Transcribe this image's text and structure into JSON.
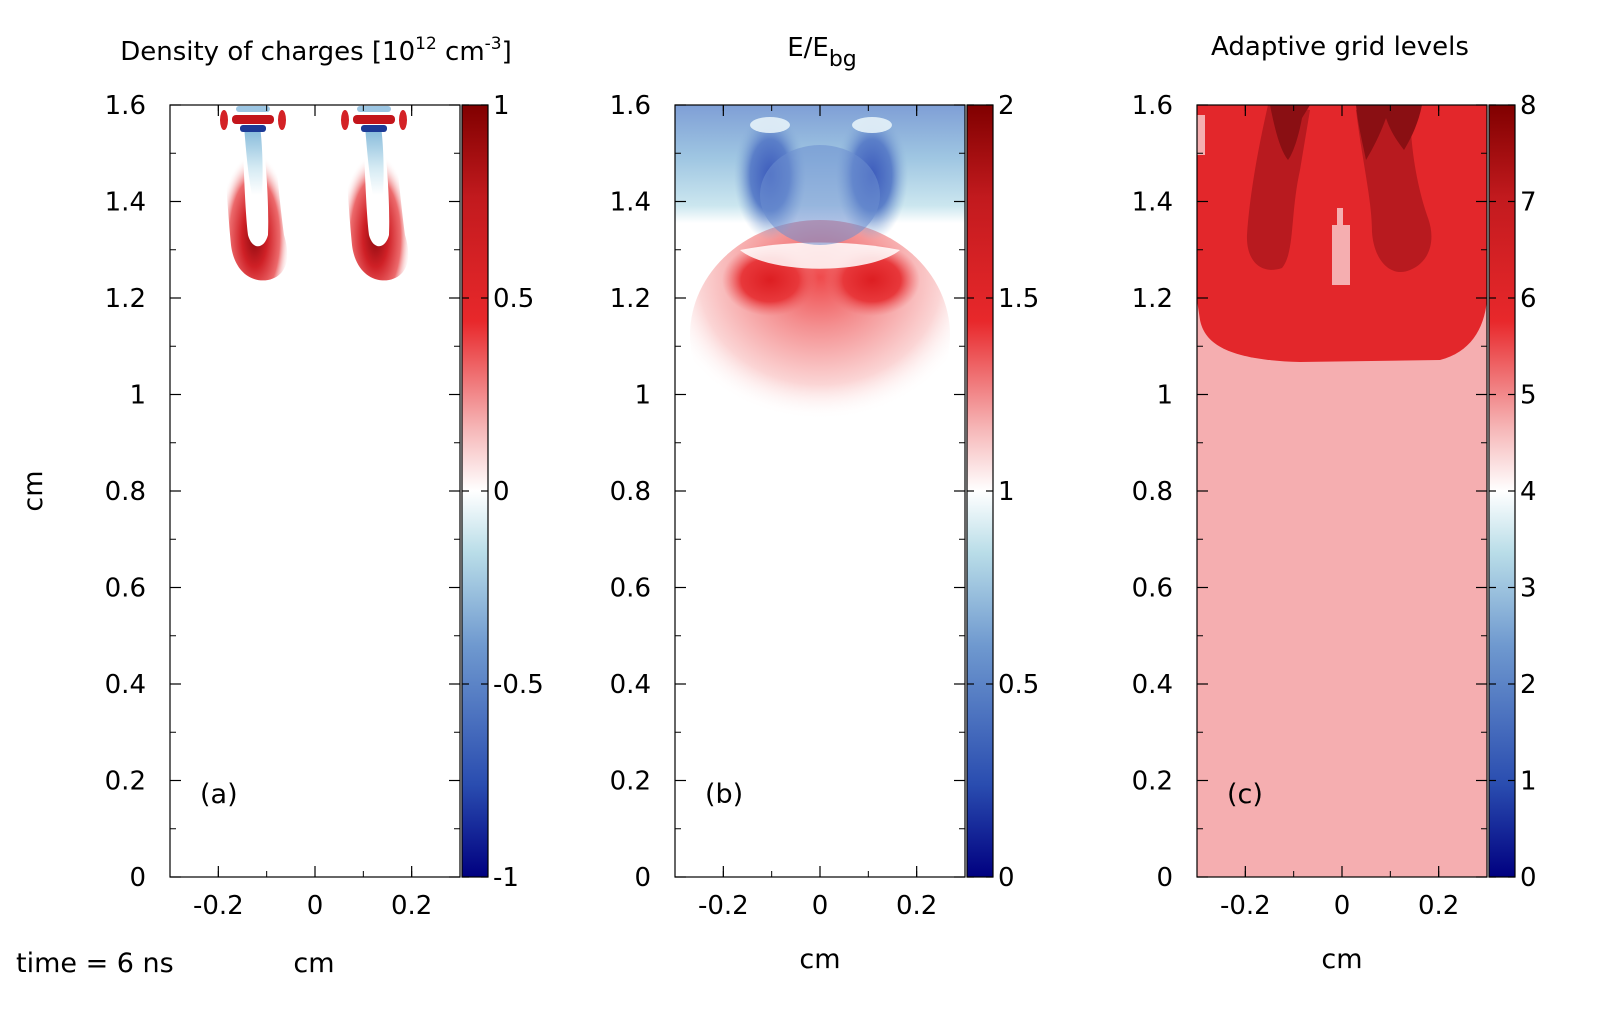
{
  "footer": {
    "time_label": "time = 6 ns"
  },
  "colors": {
    "red_dark": "#800000",
    "red": "#e8282b",
    "red_light": "#f5aeb0",
    "blue_dark": "#000080",
    "blue": "#4a6fc4",
    "blue_light": "#a8d6e3",
    "white": "#ffffff"
  },
  "chart_data": [
    {
      "type": "heatmap",
      "title_main": "Density of charges [10",
      "title_exp": "12",
      "title_unit": " cm",
      "title_unit_exp": "-3",
      "title_close": "]",
      "panel_label": "(a)",
      "xlabel": "cm",
      "ylabel": "cm",
      "xlim": [
        -0.3,
        0.3
      ],
      "ylim": [
        0,
        1.6
      ],
      "xticks": [
        {
          "v": -0.2,
          "label": "-0.2"
        },
        {
          "v": 0,
          "label": "0"
        },
        {
          "v": 0.2,
          "label": "0.2"
        }
      ],
      "yticks": [
        {
          "v": 0,
          "label": "0"
        },
        {
          "v": 0.2,
          "label": "0.2"
        },
        {
          "v": 0.4,
          "label": "0.4"
        },
        {
          "v": 0.6,
          "label": "0.6"
        },
        {
          "v": 0.8,
          "label": "0.8"
        },
        {
          "v": 1.0,
          "label": "1"
        },
        {
          "v": 1.2,
          "label": "1.2"
        },
        {
          "v": 1.4,
          "label": "1.4"
        },
        {
          "v": 1.6,
          "label": "1.6"
        }
      ],
      "colorbar": {
        "range": [
          -1,
          1
        ],
        "ticks": [
          {
            "v": -1,
            "label": "-1"
          },
          {
            "v": -0.5,
            "label": "-0.5"
          },
          {
            "v": 0,
            "label": "0"
          },
          {
            "v": 0.5,
            "label": "0.5"
          },
          {
            "v": 1,
            "label": "1"
          }
        ]
      },
      "features": [
        {
          "kind": "streamer-head",
          "x": -0.1,
          "y": 1.28,
          "value": 0.9
        },
        {
          "kind": "streamer-head",
          "x": 0.1,
          "y": 1.28,
          "value": 0.9
        },
        {
          "kind": "electrode-tip",
          "x": -0.1,
          "y": 1.6,
          "value": -1
        },
        {
          "kind": "electrode-tip",
          "x": 0.1,
          "y": 1.6,
          "value": -1
        }
      ]
    },
    {
      "type": "heatmap",
      "title_main": "E/E",
      "title_sub": "bg",
      "panel_label": "(b)",
      "xlabel": "cm",
      "xlim": [
        -0.3,
        0.3
      ],
      "ylim": [
        0,
        1.6
      ],
      "xticks": [
        {
          "v": -0.2,
          "label": "-0.2"
        },
        {
          "v": 0,
          "label": "0"
        },
        {
          "v": 0.2,
          "label": "0.2"
        }
      ],
      "yticks": [
        {
          "v": 0,
          "label": "0"
        },
        {
          "v": 0.2,
          "label": "0.2"
        },
        {
          "v": 0.4,
          "label": "0.4"
        },
        {
          "v": 0.6,
          "label": "0.6"
        },
        {
          "v": 0.8,
          "label": "0.8"
        },
        {
          "v": 1.0,
          "label": "1"
        },
        {
          "v": 1.2,
          "label": "1.2"
        },
        {
          "v": 1.4,
          "label": "1.4"
        },
        {
          "v": 1.6,
          "label": "1.6"
        }
      ],
      "colorbar": {
        "range": [
          0,
          2
        ],
        "ticks": [
          {
            "v": 0,
            "label": "0"
          },
          {
            "v": 0.5,
            "label": "0.5"
          },
          {
            "v": 1,
            "label": "1"
          },
          {
            "v": 1.5,
            "label": "1.5"
          },
          {
            "v": 2,
            "label": "2"
          }
        ]
      },
      "features": [
        {
          "kind": "field-depletion",
          "x": -0.1,
          "y": 1.45,
          "value": 0.4
        },
        {
          "kind": "field-depletion",
          "x": 0.1,
          "y": 1.45,
          "value": 0.4
        },
        {
          "kind": "field-enhancement",
          "x": -0.12,
          "y": 1.22,
          "value": 1.75
        },
        {
          "kind": "field-enhancement",
          "x": 0.12,
          "y": 1.22,
          "value": 1.75
        }
      ]
    },
    {
      "type": "heatmap",
      "title_main": "Adaptive grid levels",
      "panel_label": "(c)",
      "xlabel": "cm",
      "xlim": [
        -0.3,
        0.3
      ],
      "ylim": [
        0,
        1.6
      ],
      "xticks": [
        {
          "v": -0.2,
          "label": "-0.2"
        },
        {
          "v": 0,
          "label": "0"
        },
        {
          "v": 0.2,
          "label": "0.2"
        }
      ],
      "yticks": [
        {
          "v": 0,
          "label": "0"
        },
        {
          "v": 0.2,
          "label": "0.2"
        },
        {
          "v": 0.4,
          "label": "0.4"
        },
        {
          "v": 0.6,
          "label": "0.6"
        },
        {
          "v": 0.8,
          "label": "0.8"
        },
        {
          "v": 1.0,
          "label": "1"
        },
        {
          "v": 1.2,
          "label": "1.2"
        },
        {
          "v": 1.4,
          "label": "1.4"
        },
        {
          "v": 1.6,
          "label": "1.6"
        }
      ],
      "colorbar": {
        "range": [
          0,
          8
        ],
        "ticks": [
          {
            "v": 0,
            "label": "0"
          },
          {
            "v": 1,
            "label": "1"
          },
          {
            "v": 2,
            "label": "2"
          },
          {
            "v": 3,
            "label": "3"
          },
          {
            "v": 4,
            "label": "4"
          },
          {
            "v": 5,
            "label": "5"
          },
          {
            "v": 6,
            "label": "6"
          },
          {
            "v": 7,
            "label": "7"
          },
          {
            "v": 8,
            "label": "8"
          }
        ]
      },
      "regions": [
        {
          "level": 5,
          "y_from": 0,
          "y_to": 1.07
        },
        {
          "level": 6,
          "y_from": 1.07,
          "y_to": 1.6
        },
        {
          "level": 7,
          "desc": "streamer channels"
        },
        {
          "level": 8,
          "desc": "streamer tips near electrode"
        }
      ]
    }
  ]
}
